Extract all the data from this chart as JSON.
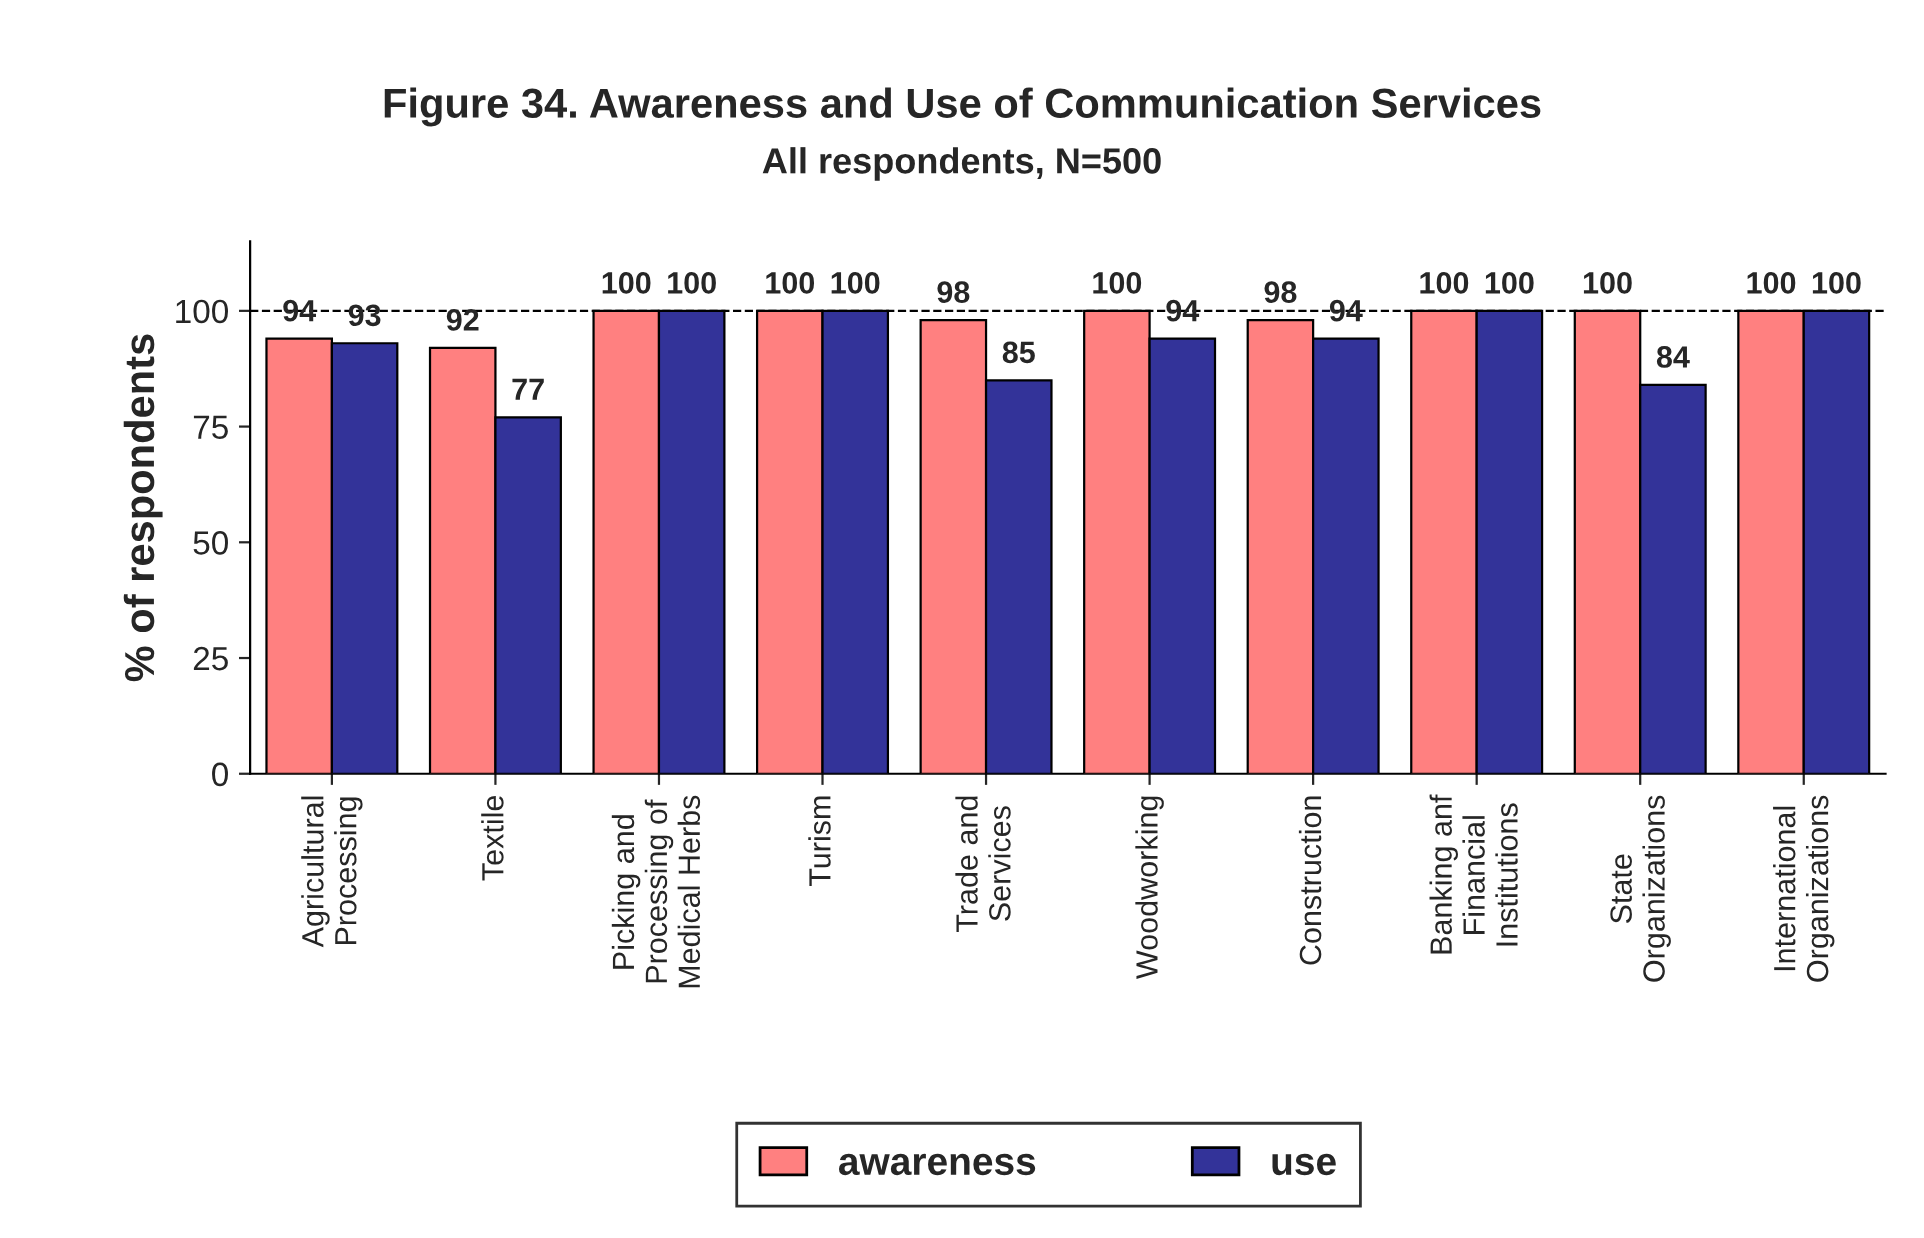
{
  "chart_data": {
    "type": "bar",
    "title": "Figure 34. Awareness and Use of Communication Services",
    "subtitle": "All respondents, N=500",
    "ylabel": "% of respondents",
    "categories": [
      "Agricultural\nProcessing",
      "Textile",
      "Picking and\nProcessing of\nMedical Herbs",
      "Turism",
      "Trade and\nServices",
      "Woodworking",
      "Construction",
      "Banking anf\nFinancial\nInstitutions",
      "State\nOrganizations",
      "International\nOrganizations"
    ],
    "series": [
      {
        "name": "awareness",
        "color": "#ff8080",
        "values": [
          94,
          92,
          100,
          100,
          98,
          100,
          98,
          100,
          100,
          100
        ]
      },
      {
        "name": "use",
        "color": "#333399",
        "values": [
          93,
          77,
          100,
          100,
          85,
          94,
          94,
          100,
          84,
          100
        ]
      }
    ],
    "ylim": [
      0,
      115
    ],
    "yticks": [
      0,
      25,
      50,
      75,
      100
    ],
    "grid": false,
    "legend": "bottom",
    "data_labels": true,
    "ref_lines": [
      {
        "axis": "y",
        "value": 100,
        "color": "#000000",
        "line_style": "dashed"
      }
    ]
  }
}
